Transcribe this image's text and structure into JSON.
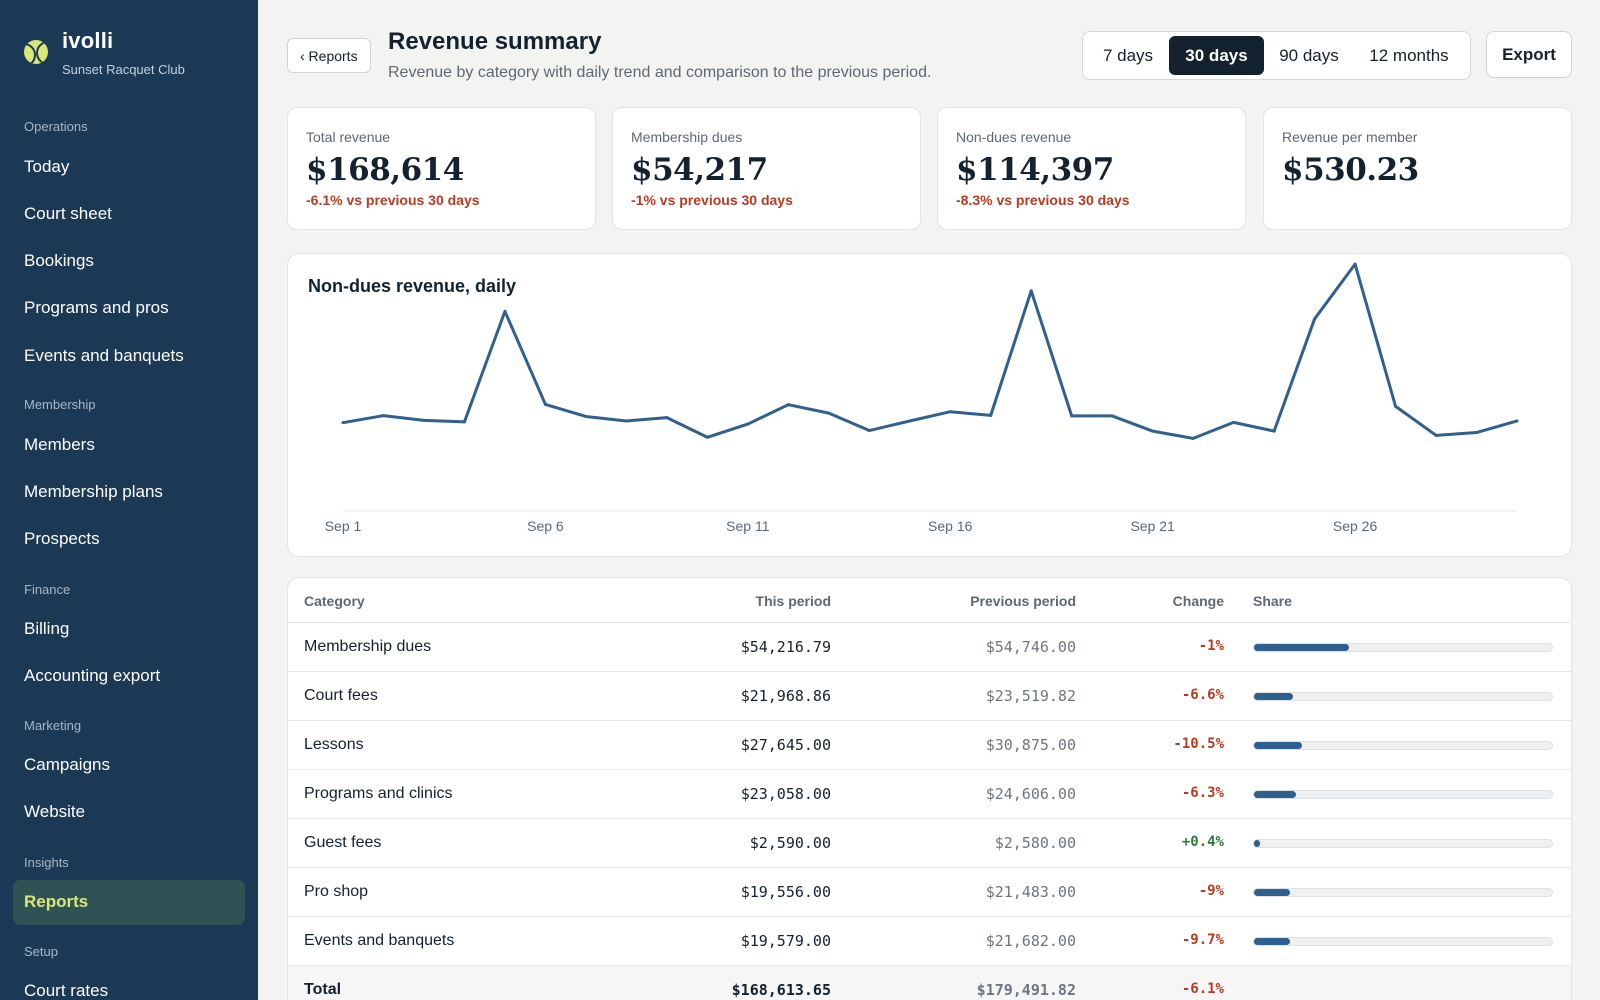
{
  "brand": {
    "name": "ivolli",
    "club": "Sunset Racquet Club"
  },
  "sidebar": {
    "sections": [
      {
        "label": "Operations",
        "items": [
          "Today",
          "Court sheet",
          "Bookings",
          "Programs and pros",
          "Events and banquets"
        ]
      },
      {
        "label": "Membership",
        "items": [
          "Members",
          "Membership plans",
          "Prospects"
        ]
      },
      {
        "label": "Finance",
        "items": [
          "Billing",
          "Accounting export"
        ]
      },
      {
        "label": "Marketing",
        "items": [
          "Campaigns",
          "Website"
        ]
      },
      {
        "label": "Insights",
        "items": [
          "Reports"
        ]
      },
      {
        "label": "Setup",
        "items": [
          "Court rates"
        ]
      }
    ],
    "active_item": "Reports"
  },
  "header": {
    "back_label": "‹ Reports",
    "title": "Revenue summary",
    "subtitle": "Revenue by category with daily trend and comparison to the previous period.",
    "ranges": [
      "7 days",
      "30 days",
      "90 days",
      "12 months"
    ],
    "active_range": "30 days",
    "export_label": "Export"
  },
  "kpis": [
    {
      "label": "Total revenue",
      "value": "$168,614",
      "delta": "-6.1% vs previous 30 days"
    },
    {
      "label": "Membership dues",
      "value": "$54,217",
      "delta": "-1% vs previous 30 days"
    },
    {
      "label": "Non-dues revenue",
      "value": "$114,397",
      "delta": "-8.3% vs previous 30 days"
    },
    {
      "label": "Revenue per member",
      "value": "$530.23",
      "delta": ""
    }
  ],
  "chart_data": {
    "type": "line",
    "title": "Non-dues revenue, daily",
    "x": [
      "Sep 1",
      "Sep 2",
      "Sep 3",
      "Sep 4",
      "Sep 5",
      "Sep 6",
      "Sep 7",
      "Sep 8",
      "Sep 9",
      "Sep 10",
      "Sep 11",
      "Sep 12",
      "Sep 13",
      "Sep 14",
      "Sep 15",
      "Sep 16",
      "Sep 17",
      "Sep 18",
      "Sep 19",
      "Sep 20",
      "Sep 21",
      "Sep 22",
      "Sep 23",
      "Sep 24",
      "Sep 25",
      "Sep 26",
      "Sep 27",
      "Sep 28",
      "Sep 29",
      "Sep 30"
    ],
    "tick_labels": [
      "Sep 1",
      "Sep 6",
      "Sep 11",
      "Sep 16",
      "Sep 21",
      "Sep 26"
    ],
    "series": [
      {
        "values": [
          3000,
          3250,
          3080,
          3030,
          6960,
          3650,
          3220,
          3060,
          3180,
          2480,
          2950,
          3640,
          3340,
          2720,
          3060,
          3390,
          3260,
          7690,
          3240,
          3240,
          2700,
          2440,
          3010,
          2700,
          6690,
          8640,
          3580,
          2550,
          2650,
          3060
        ]
      }
    ],
    "ylim": [
      0,
      9000
    ],
    "grid": false,
    "legend": "none",
    "line_color": "#31608f"
  },
  "table": {
    "headers": {
      "category": "Category",
      "this_period": "This period",
      "previous_period": "Previous period",
      "change": "Change",
      "share": "Share"
    },
    "rows": [
      {
        "category": "Membership dues",
        "this_period": "$54,216.79",
        "previous_period": "$54,746.00",
        "change": "-1%",
        "share": 0.32
      },
      {
        "category": "Court fees",
        "this_period": "$21,968.86",
        "previous_period": "$23,519.82",
        "change": "-6.6%",
        "share": 0.13
      },
      {
        "category": "Lessons",
        "this_period": "$27,645.00",
        "previous_period": "$30,875.00",
        "change": "-10.5%",
        "share": 0.16
      },
      {
        "category": "Programs and clinics",
        "this_period": "$23,058.00",
        "previous_period": "$24,606.00",
        "change": "-6.3%",
        "share": 0.14
      },
      {
        "category": "Guest fees",
        "this_period": "$2,590.00",
        "previous_period": "$2,580.00",
        "change": "+0.4%",
        "share": 0.02
      },
      {
        "category": "Pro shop",
        "this_period": "$19,556.00",
        "previous_period": "$21,483.00",
        "change": "-9%",
        "share": 0.12
      },
      {
        "category": "Events and banquets",
        "this_period": "$19,579.00",
        "previous_period": "$21,682.00",
        "change": "-9.7%",
        "share": 0.12
      }
    ],
    "total": {
      "category": "Total",
      "this_period": "$168,613.65",
      "previous_period": "$179,491.82",
      "change": "-6.1%"
    }
  },
  "colors": {
    "sidebar": "#1b3855",
    "accent": "#dbe77a",
    "negative": "#b53b22",
    "positive": "#2f7a3a",
    "bar": "#2e5f8e"
  }
}
